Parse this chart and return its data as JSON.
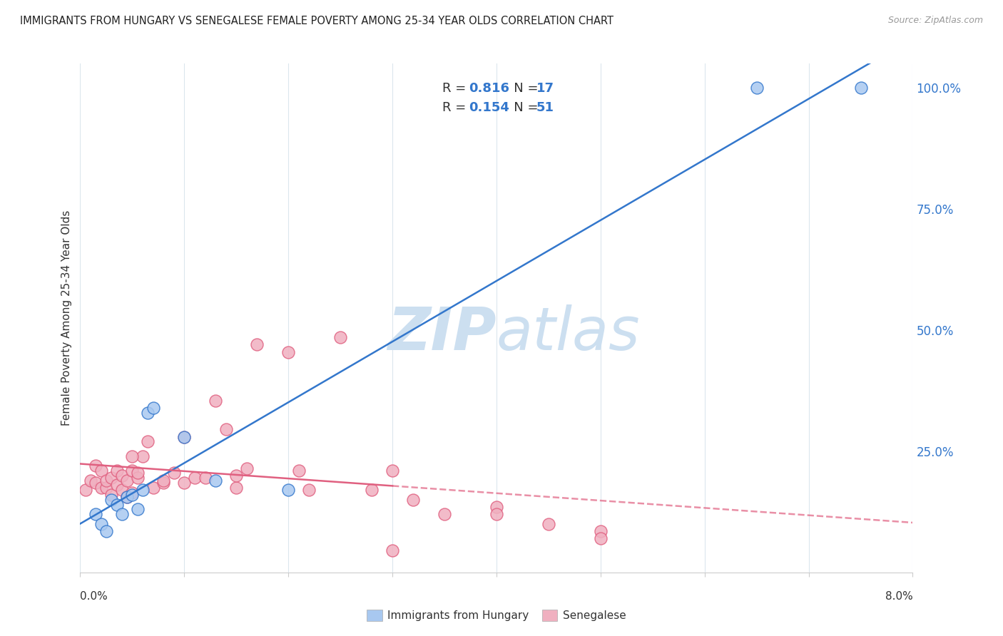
{
  "title": "IMMIGRANTS FROM HUNGARY VS SENEGALESE FEMALE POVERTY AMONG 25-34 YEAR OLDS CORRELATION CHART",
  "source": "Source: ZipAtlas.com",
  "ylabel": "Female Poverty Among 25-34 Year Olds",
  "color_blue": "#a8c8f0",
  "color_pink": "#f0b0c0",
  "line_blue": "#3377cc",
  "line_pink": "#e06080",
  "background": "#ffffff",
  "hungary_x": [
    0.00015,
    0.0002,
    0.00025,
    0.0003,
    0.00035,
    0.0004,
    0.00045,
    0.0005,
    0.00055,
    0.0006,
    0.00065,
    0.0007,
    0.001,
    0.0013,
    0.002,
    0.0065,
    0.0075
  ],
  "hungary_y": [
    0.12,
    0.1,
    0.085,
    0.15,
    0.14,
    0.12,
    0.155,
    0.16,
    0.13,
    0.17,
    0.33,
    0.34,
    0.28,
    0.19,
    0.17,
    1.0,
    1.0
  ],
  "senegal_x": [
    5e-05,
    0.0001,
    0.00015,
    0.00015,
    0.0002,
    0.0002,
    0.00025,
    0.00025,
    0.0003,
    0.0003,
    0.00035,
    0.00035,
    0.0004,
    0.0004,
    0.00045,
    0.00045,
    0.0005,
    0.0005,
    0.00055,
    0.00055,
    0.0006,
    0.00065,
    0.0007,
    0.0008,
    0.0008,
    0.0009,
    0.001,
    0.0011,
    0.0012,
    0.0013,
    0.0014,
    0.0015,
    0.0016,
    0.0017,
    0.002,
    0.0021,
    0.0025,
    0.0028,
    0.003,
    0.0032,
    0.0035,
    0.004,
    0.0045,
    0.005,
    0.0005,
    0.001,
    0.0015,
    0.0022,
    0.003,
    0.004,
    0.005
  ],
  "senegal_y": [
    0.17,
    0.19,
    0.22,
    0.185,
    0.21,
    0.175,
    0.175,
    0.19,
    0.16,
    0.195,
    0.18,
    0.21,
    0.17,
    0.2,
    0.155,
    0.19,
    0.165,
    0.21,
    0.195,
    0.205,
    0.24,
    0.27,
    0.175,
    0.185,
    0.19,
    0.205,
    0.185,
    0.195,
    0.195,
    0.355,
    0.295,
    0.175,
    0.215,
    0.47,
    0.455,
    0.21,
    0.485,
    0.17,
    0.21,
    0.15,
    0.12,
    0.135,
    0.1,
    0.085,
    0.24,
    0.28,
    0.2,
    0.17,
    0.045,
    0.12,
    0.07
  ],
  "xlim": [
    0.0,
    0.008
  ],
  "ylim": [
    0.0,
    1.05
  ],
  "yticks": [
    0.0,
    0.25,
    0.5,
    0.75,
    1.0
  ],
  "yticklabels": [
    "",
    "25.0%",
    "50.0%",
    "75.0%",
    "100.0%"
  ],
  "xtick_positions": [
    0.0,
    0.001,
    0.002,
    0.003,
    0.004,
    0.005,
    0.006,
    0.007,
    0.008
  ],
  "grid_color": "#d8e4ec",
  "watermark_color": "#ccdff0",
  "legend_r1": "R = 0.816",
  "legend_n1": "N = 17",
  "legend_r2": "R = 0.154",
  "legend_n2": "N = 51",
  "legend_text_color": "#111111",
  "legend_value_color": "#3377cc"
}
